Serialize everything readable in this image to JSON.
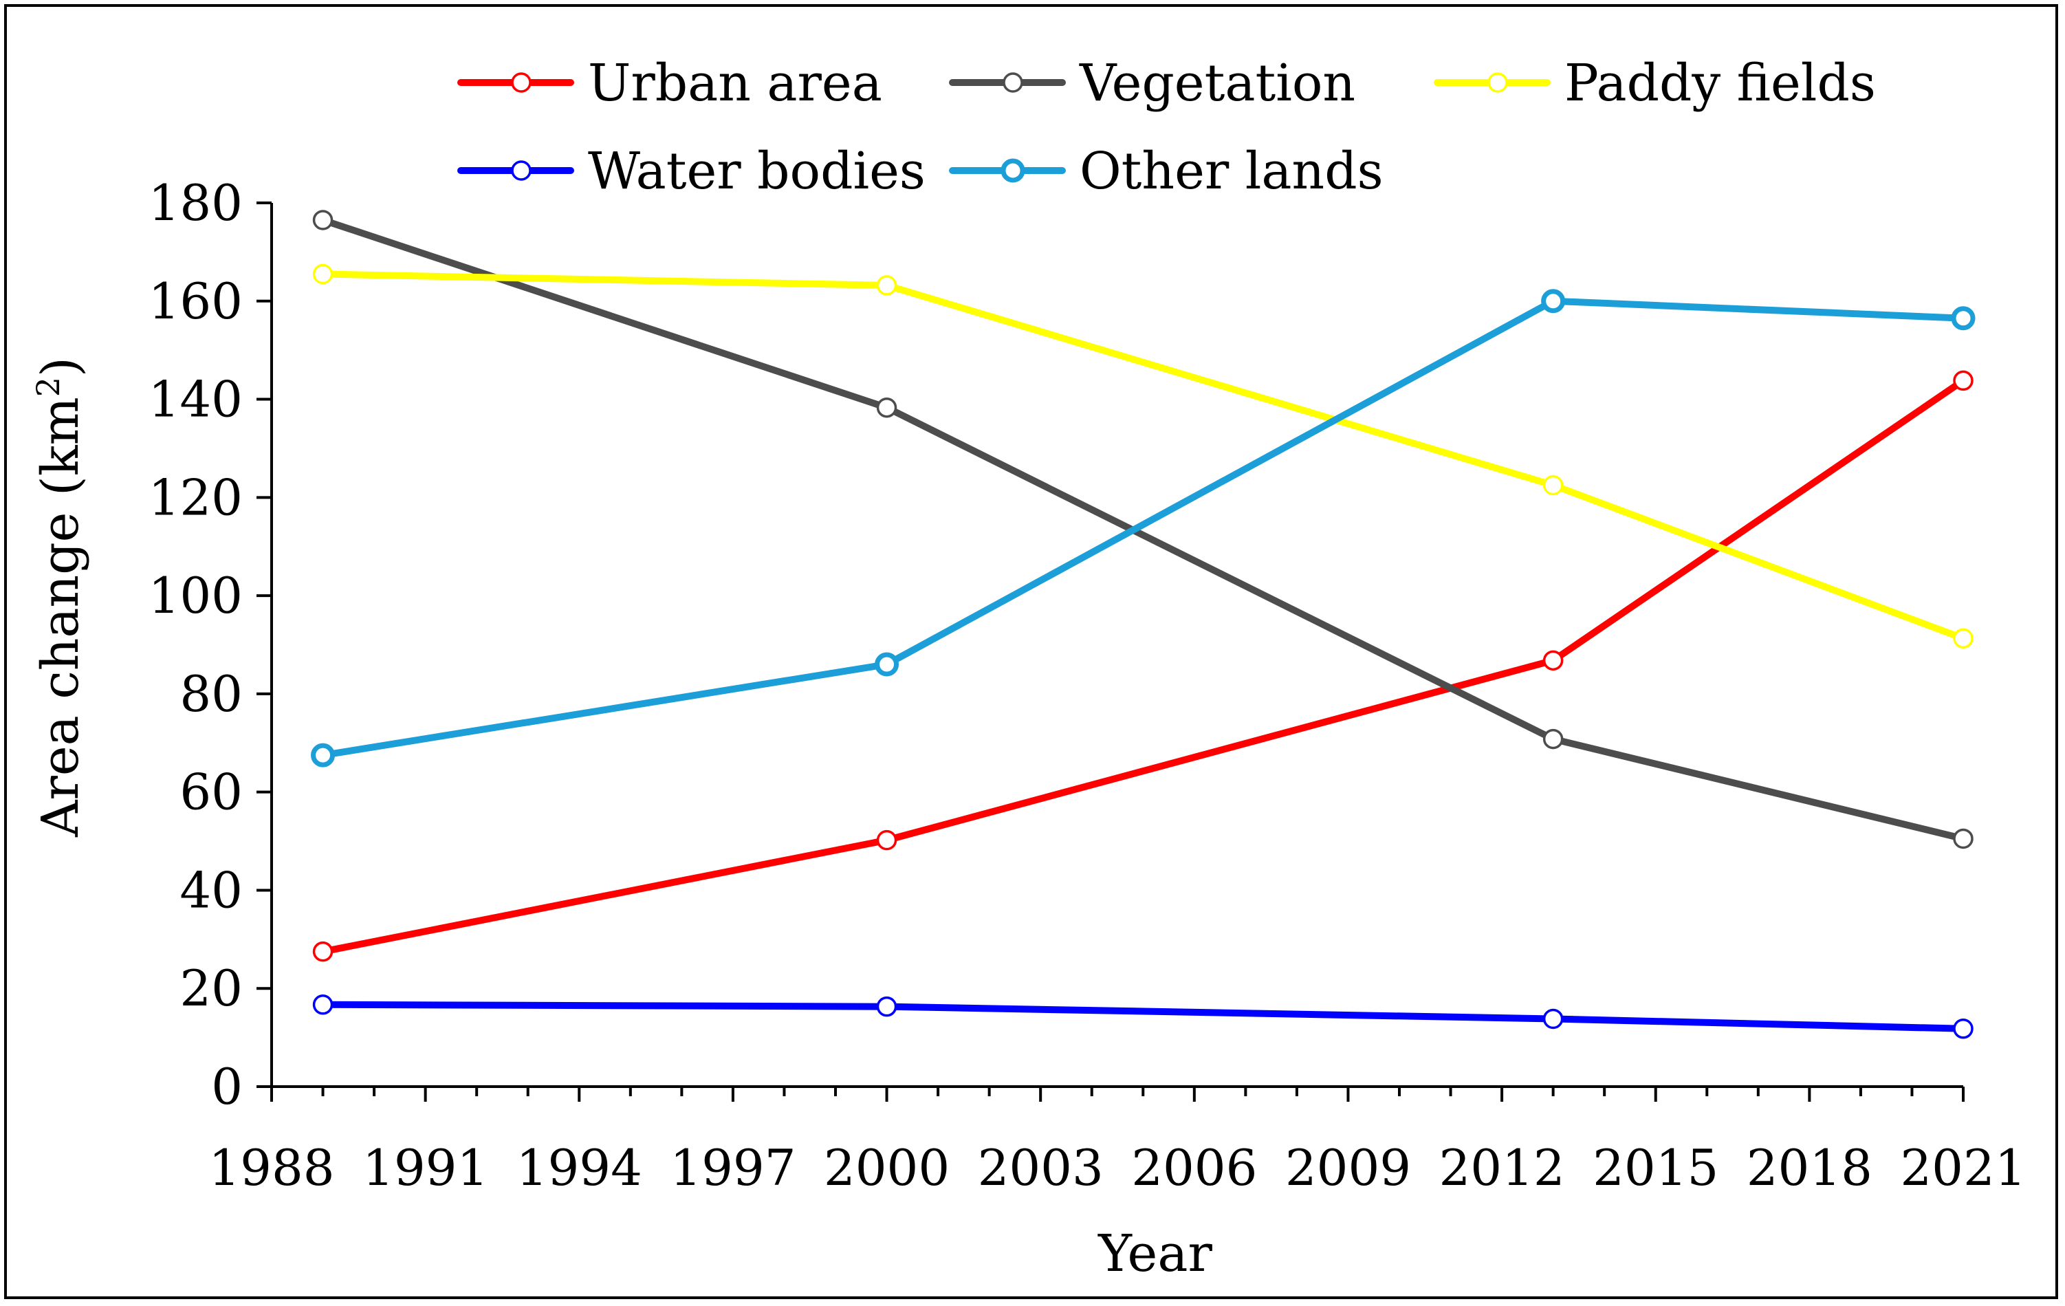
{
  "chart_data": {
    "type": "line",
    "title": "",
    "xlabel": "Year",
    "ylabel": "Area change (km",
    "ylabel_sup": "2",
    "ylabel_close": ")",
    "x": [
      1989,
      2000,
      2013,
      2021
    ],
    "xlim": [
      1988,
      2021
    ],
    "ylim": [
      0,
      180
    ],
    "x_ticks": [
      "1988",
      "1991",
      "1994",
      "1997",
      "2000",
      "2003",
      "2006",
      "2009",
      "2012",
      "2015",
      "2018",
      "2021"
    ],
    "y_ticks": [
      "0",
      "20",
      "40",
      "60",
      "80",
      "100",
      "120",
      "140",
      "160",
      "180"
    ],
    "grid": false,
    "legend_position": "top",
    "series": [
      {
        "name": "Urban area",
        "color": "#ff0000",
        "values": [
          27.5,
          50.2,
          86.8,
          143.8
        ]
      },
      {
        "name": "Vegetation",
        "color": "#4d4d4d",
        "values": [
          176.5,
          138.3,
          70.8,
          50.5
        ]
      },
      {
        "name": "Paddy fields",
        "color": "#ffff00",
        "values": [
          165.5,
          163.2,
          122.5,
          91.3
        ]
      },
      {
        "name": "Water bodies",
        "color": "#0000ff",
        "values": [
          16.7,
          16.3,
          13.8,
          11.8
        ]
      },
      {
        "name": "Other lands",
        "color": "#1c9fd9",
        "values": [
          67.5,
          86.0,
          160.0,
          156.5
        ]
      }
    ]
  }
}
